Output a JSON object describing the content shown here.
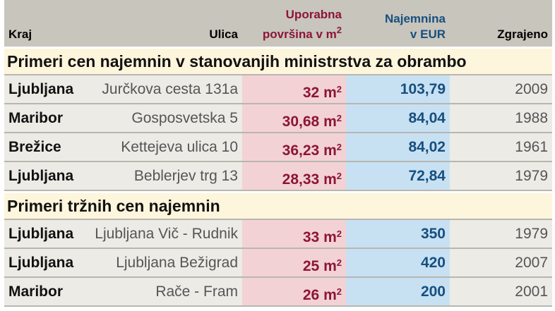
{
  "header": {
    "kraj": "Kraj",
    "ulica": "Ulica",
    "area_line1": "Uporabna",
    "area_line2": "površina v m",
    "area_sup": "2",
    "rent_line1": "Najemnina",
    "rent_line2": "v EUR",
    "year": "Zgrajeno"
  },
  "colors": {
    "header_bg": "#c8c5bc",
    "section_bg": "#fdf5dc",
    "area_bg": "#f3d2d5",
    "rent_bg": "#c7e1f3",
    "area_text": "#8c1538",
    "rent_text": "#174f7f"
  },
  "unit": "m",
  "unit_sup": "2",
  "sections": [
    {
      "title": "Primeri cen najemnin v stanovanjih ministrstva za obrambo",
      "rows": [
        {
          "kraj": "Ljubljana",
          "ulica": "Jurčkova cesta 131a",
          "area": "32",
          "rent": "103,79",
          "year": "2009"
        },
        {
          "kraj": "Maribor",
          "ulica": "Gosposvetska 5",
          "area": "30,68",
          "rent": "84,04",
          "year": "1988"
        },
        {
          "kraj": "Brežice",
          "ulica": "Kettejeva ulica 10",
          "area": "36,23",
          "rent": "84,02",
          "year": "1961"
        },
        {
          "kraj": "Ljubljana",
          "ulica": "Beblerjev trg 13",
          "area": "28,33",
          "rent": "72,84",
          "year": "1979"
        }
      ]
    },
    {
      "title": "Primeri tržnih cen najemnin",
      "rows": [
        {
          "kraj": "Ljubljana",
          "ulica": "Ljubljana Vič - Rudnik",
          "area": "33",
          "rent": "350",
          "year": "1979"
        },
        {
          "kraj": "Ljubljana",
          "ulica": "Ljubljana Bežigrad",
          "area": "25",
          "rent": "420",
          "year": "2007"
        },
        {
          "kraj": "Maribor",
          "ulica": "Rače - Fram",
          "area": "26",
          "rent": "200",
          "year": "2001"
        }
      ]
    }
  ]
}
